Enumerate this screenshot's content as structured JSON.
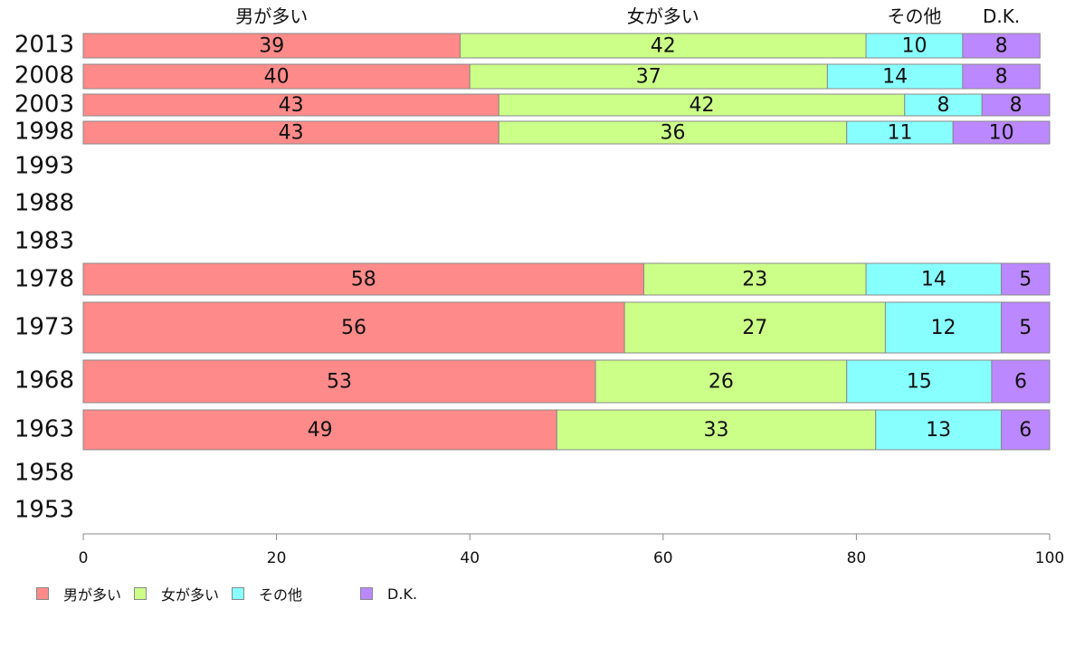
{
  "chart_data": {
    "type": "bar",
    "orientation": "horizontal",
    "stacked": true,
    "categories": [
      "2013",
      "2008",
      "2003",
      "1998",
      "1993",
      "1988",
      "1983",
      "1978",
      "1973",
      "1968",
      "1963",
      "1958",
      "1953"
    ],
    "series": [
      {
        "name": "男が多い",
        "color": "#ff8a8a",
        "values": [
          39,
          40,
          43,
          43,
          null,
          null,
          null,
          58,
          56,
          53,
          49,
          null,
          null
        ]
      },
      {
        "name": "女が多い",
        "color": "#ccff88",
        "values": [
          42,
          37,
          42,
          36,
          null,
          null,
          null,
          23,
          27,
          26,
          33,
          null,
          null
        ]
      },
      {
        "name": "その他",
        "color": "#88ffff",
        "values": [
          10,
          14,
          8,
          11,
          null,
          null,
          null,
          14,
          12,
          15,
          13,
          null,
          null
        ]
      },
      {
        "name": "D.K.",
        "color": "#bb88ff",
        "values": [
          8,
          8,
          8,
          10,
          null,
          null,
          null,
          5,
          5,
          6,
          6,
          null,
          null
        ]
      }
    ],
    "xlim": [
      0,
      100
    ],
    "xticks": [
      0,
      20,
      40,
      60,
      80,
      100
    ],
    "legend": "bottom-left",
    "grid": false
  }
}
